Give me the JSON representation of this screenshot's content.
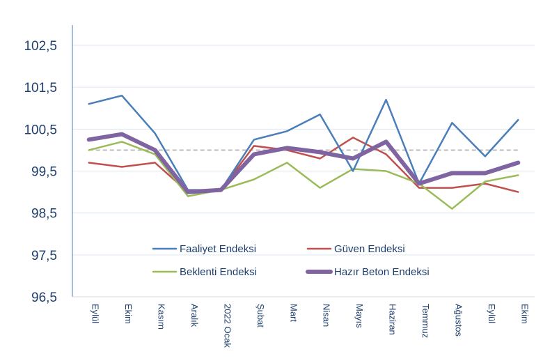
{
  "chart_data": {
    "type": "line",
    "categories": [
      "Eylül",
      "Ekim",
      "Kasım",
      "Aralık",
      "2022 Ocak",
      "Şubat",
      "Mart",
      "Nisan",
      "Mayıs",
      "Haziran",
      "Temmuz",
      "Ağustos",
      "Eylül",
      "Ekim"
    ],
    "y_ticks": [
      "102,5",
      "101,5",
      "100,5",
      "99,5",
      "98,5",
      "97,5",
      "96,5"
    ],
    "ylim": [
      96.5,
      103.0
    ],
    "reference_line": 100,
    "grid": true,
    "legend_position": "bottom-center",
    "series": [
      {
        "name": "Faaliyet Endeksi",
        "color": "#4a7ebb",
        "width": 2.5,
        "values": [
          101.1,
          101.3,
          100.4,
          99.05,
          99.05,
          100.25,
          100.45,
          100.85,
          99.5,
          101.2,
          99.2,
          100.65,
          99.85,
          100.72
        ]
      },
      {
        "name": "Güven Endeksi",
        "color": "#c0504d",
        "width": 2.5,
        "values": [
          99.7,
          99.6,
          99.7,
          99.0,
          99.05,
          100.1,
          100.0,
          99.8,
          100.3,
          99.9,
          99.1,
          99.1,
          99.2,
          99.0
        ]
      },
      {
        "name": "Beklenti Endeksi",
        "color": "#9bbb59",
        "width": 2.5,
        "values": [
          100.0,
          100.2,
          99.9,
          98.9,
          99.05,
          99.3,
          99.7,
          99.1,
          99.55,
          99.5,
          99.2,
          98.6,
          99.25,
          99.4
        ]
      },
      {
        "name": "Hazır Beton Endeksi",
        "color": "#8064a2",
        "width": 6,
        "values": [
          100.25,
          100.38,
          100.0,
          99.0,
          99.05,
          99.9,
          100.05,
          99.95,
          99.8,
          100.2,
          99.2,
          99.45,
          99.45,
          99.7
        ]
      }
    ]
  }
}
